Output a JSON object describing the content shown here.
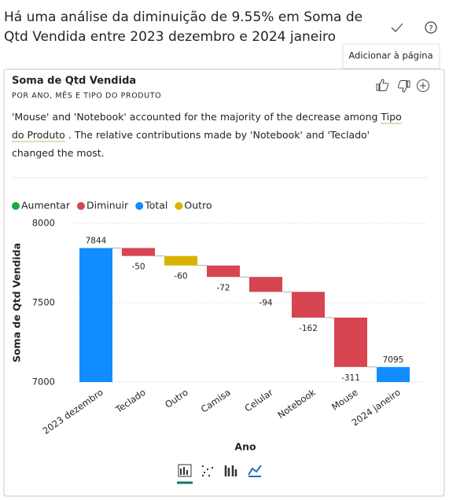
{
  "header": {
    "title": "Há uma análise da diminuição de 9.55% em Soma de Qtd Vendida entre 2023 dezembro e 2024 janeiro",
    "tooltip": "Adicionar à página"
  },
  "card": {
    "title": "Soma de Qtd Vendida",
    "subtitle": "POR ANO, MÊS E TIPO DO PRODUTO",
    "description": [
      "'Mouse' and 'Notebook' accounted for the majority of the decrease among ",
      "Tipo do Produto",
      " . The relative contributions made by 'Notebook' and 'Teclado' changed the most."
    ]
  },
  "chart_data": {
    "type": "waterfall",
    "x_label": "Ano",
    "y_label": "Soma de Qtd Vendida",
    "legend": [
      {
        "name": "Aumentar",
        "color": "#1aab40"
      },
      {
        "name": "Diminuir",
        "color": "#d64550"
      },
      {
        "name": "Total",
        "color": "#118dff"
      },
      {
        "name": "Outro",
        "color": "#d9b300"
      }
    ],
    "categories": [
      "2023 dezembro",
      "Teclado",
      "Outro",
      "Camisa",
      "Celular",
      "Notebook",
      "Mouse",
      "2024 janeiro"
    ],
    "values": [
      7844,
      -50,
      -60,
      -72,
      -94,
      -162,
      -311,
      7095
    ],
    "bar_legend_index": [
      2,
      1,
      3,
      1,
      1,
      1,
      1,
      2
    ],
    "is_total": [
      true,
      false,
      false,
      false,
      false,
      false,
      false,
      true
    ],
    "ylim": [
      7000,
      8000
    ],
    "yticks": [
      7000,
      7500,
      8000
    ],
    "grid": true
  }
}
